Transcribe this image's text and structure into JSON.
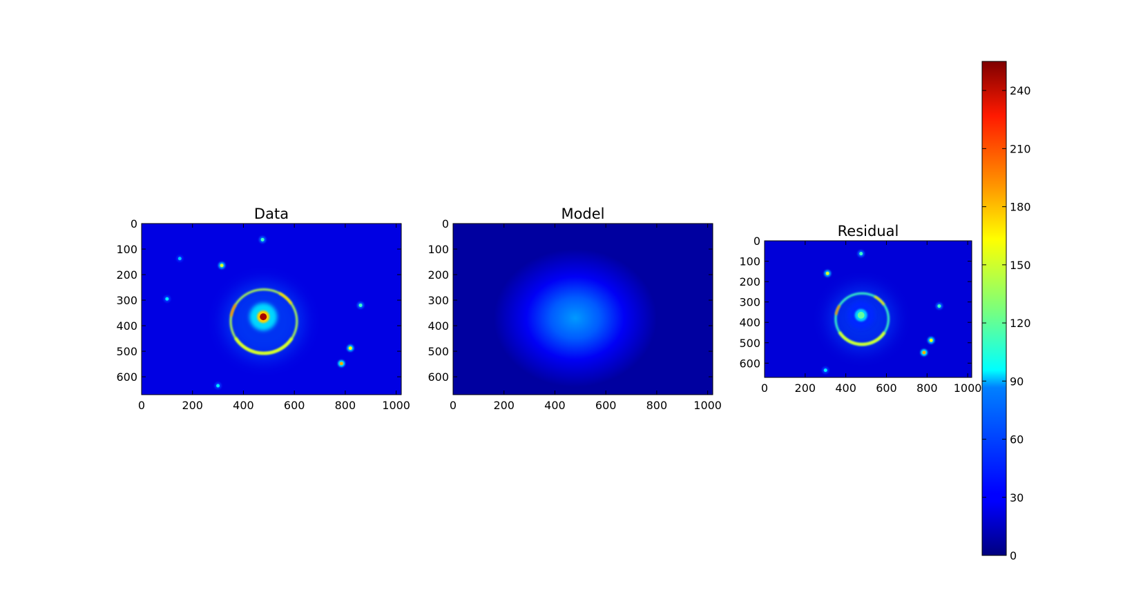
{
  "chart_data": [
    {
      "type": "heatmap",
      "title": "Data",
      "x_ticks": [
        "0",
        "200",
        "400",
        "600",
        "800",
        "1000"
      ],
      "y_ticks": [
        "0",
        "100",
        "200",
        "300",
        "400",
        "500",
        "600"
      ],
      "xlim": [
        0,
        1020
      ],
      "ylim": [
        670,
        0
      ],
      "features": {
        "lens_center": {
          "x": 478,
          "y": 365,
          "value": 245
        },
        "einstein_ring": {
          "cx": 480,
          "cy": 383,
          "rx": 130,
          "ry": 125,
          "value": 140
        },
        "sources": [
          {
            "x": 475,
            "y": 63,
            "value": 110
          },
          {
            "x": 315,
            "y": 164,
            "value": 150
          },
          {
            "x": 860,
            "y": 320,
            "value": 110
          },
          {
            "x": 820,
            "y": 488,
            "value": 160
          },
          {
            "x": 785,
            "y": 548,
            "value": 180
          },
          {
            "x": 300,
            "y": 635,
            "value": 90
          },
          {
            "x": 100,
            "y": 295,
            "value": 90
          },
          {
            "x": 150,
            "y": 137,
            "value": 80
          }
        ],
        "background_value": 25
      }
    },
    {
      "type": "heatmap",
      "title": "Model",
      "x_ticks": [
        "0",
        "200",
        "400",
        "600",
        "800",
        "1000"
      ],
      "y_ticks": [
        "0",
        "100",
        "200",
        "300",
        "400",
        "500",
        "600"
      ],
      "xlim": [
        0,
        1020
      ],
      "ylim": [
        670,
        0
      ],
      "features": {
        "blob": {
          "x": 480,
          "y": 370,
          "rx": 320,
          "ry": 270,
          "peak_value": 70
        },
        "background_value": 8
      }
    },
    {
      "type": "heatmap",
      "title": "Residual",
      "x_ticks": [
        "0",
        "200",
        "400",
        "600",
        "800",
        "1000"
      ],
      "y_ticks": [
        "0",
        "100",
        "200",
        "300",
        "400",
        "500",
        "600"
      ],
      "xlim": [
        0,
        1020
      ],
      "ylim": [
        670,
        0
      ],
      "features": {
        "lens_center": {
          "x": 475,
          "y": 365,
          "value": 120
        },
        "einstein_ring": {
          "cx": 480,
          "cy": 383,
          "rx": 130,
          "ry": 125,
          "value": 110
        },
        "sources": [
          {
            "x": 475,
            "y": 63,
            "value": 110
          },
          {
            "x": 310,
            "y": 160,
            "value": 150
          },
          {
            "x": 860,
            "y": 320,
            "value": 110
          },
          {
            "x": 820,
            "y": 488,
            "value": 160
          },
          {
            "x": 785,
            "y": 548,
            "value": 180
          },
          {
            "x": 300,
            "y": 635,
            "value": 90
          }
        ],
        "background_value": 22
      }
    }
  ],
  "colorbar": {
    "colormap": "jet",
    "vmin": 0,
    "vmax": 255,
    "ticks": [
      "0",
      "30",
      "60",
      "90",
      "120",
      "150",
      "180",
      "210",
      "240"
    ]
  }
}
